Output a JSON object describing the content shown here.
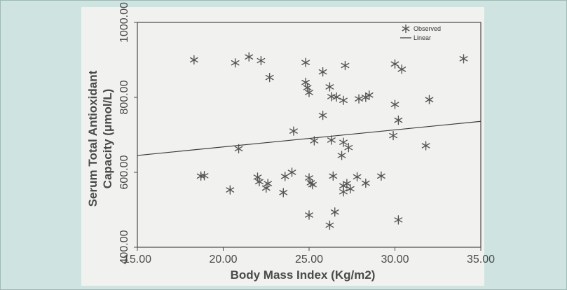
{
  "chart_data": {
    "type": "scatter",
    "title": "",
    "xlabel": "Body Mass Index (Kg/m2)",
    "ylabel_line1": "Serum Total Antioxidant",
    "ylabel_line2": "Capacity (μmol/L)",
    "xlim": [
      15,
      35
    ],
    "ylim": [
      400,
      1000
    ],
    "xticks": [
      "15.00",
      "20.00",
      "25.00",
      "30.00",
      "35.00"
    ],
    "yticks": [
      "400.00",
      "600.00",
      "800.00",
      "1000.00"
    ],
    "grid": false,
    "legend_position": "top-right",
    "legend": [
      {
        "label": "Observed",
        "marker": "star"
      },
      {
        "label": "Linear",
        "marker": "line"
      }
    ],
    "series": [
      {
        "name": "Observed",
        "points": [
          [
            18.3,
            900
          ],
          [
            20.7,
            892
          ],
          [
            21.5,
            908
          ],
          [
            22.2,
            898
          ],
          [
            22.7,
            853
          ],
          [
            24.8,
            893
          ],
          [
            25.8,
            868
          ],
          [
            27.1,
            885
          ],
          [
            30.0,
            889
          ],
          [
            30.4,
            875
          ],
          [
            34.0,
            903
          ],
          [
            24.8,
            840
          ],
          [
            24.9,
            826
          ],
          [
            25.0,
            813
          ],
          [
            26.2,
            828
          ],
          [
            26.3,
            802
          ],
          [
            26.6,
            801
          ],
          [
            27.0,
            792
          ],
          [
            27.9,
            796
          ],
          [
            28.3,
            800
          ],
          [
            28.5,
            806
          ],
          [
            30.0,
            781
          ],
          [
            32.0,
            794
          ],
          [
            25.8,
            752
          ],
          [
            24.1,
            710
          ],
          [
            30.2,
            739
          ],
          [
            29.9,
            698
          ],
          [
            25.3,
            684
          ],
          [
            26.3,
            686
          ],
          [
            27.0,
            680
          ],
          [
            27.3,
            666
          ],
          [
            26.9,
            645
          ],
          [
            20.9,
            663
          ],
          [
            31.8,
            671
          ],
          [
            18.7,
            590
          ],
          [
            18.9,
            591
          ],
          [
            22.0,
            587
          ],
          [
            22.1,
            575
          ],
          [
            22.6,
            570
          ],
          [
            22.5,
            558
          ],
          [
            23.6,
            589
          ],
          [
            24.0,
            600
          ],
          [
            25.0,
            585
          ],
          [
            25.1,
            572
          ],
          [
            25.2,
            567
          ],
          [
            26.4,
            590
          ],
          [
            27.0,
            564
          ],
          [
            27.2,
            570
          ],
          [
            27.8,
            588
          ],
          [
            28.3,
            571
          ],
          [
            29.2,
            590
          ],
          [
            20.4,
            553
          ],
          [
            23.5,
            546
          ],
          [
            27.0,
            548
          ],
          [
            27.4,
            556
          ],
          [
            25.0,
            486
          ],
          [
            26.5,
            494
          ],
          [
            26.2,
            459
          ],
          [
            30.2,
            473
          ]
        ]
      },
      {
        "name": "Linear",
        "line": [
          [
            15,
            645
          ],
          [
            35,
            736
          ]
        ]
      }
    ]
  }
}
